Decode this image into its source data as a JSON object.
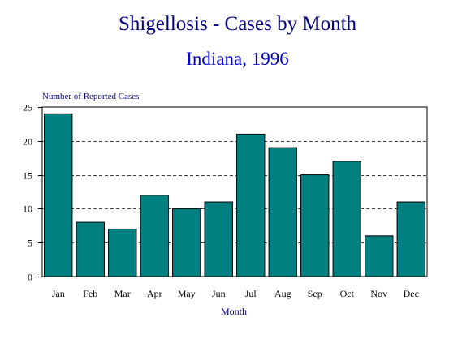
{
  "chart_data": {
    "type": "bar",
    "title": "Shigellosis - Cases by Month",
    "subtitle": "Indiana, 1996",
    "ylabel": "Number of Reported Cases",
    "xlabel": "Month",
    "categories": [
      "Jan",
      "Feb",
      "Mar",
      "Apr",
      "May",
      "Jun",
      "Jul",
      "Aug",
      "Sep",
      "Oct",
      "Nov",
      "Dec"
    ],
    "values": [
      24,
      8,
      7,
      12,
      10,
      11,
      21,
      19,
      15,
      17,
      6,
      11
    ],
    "ylim": [
      0,
      25
    ],
    "yticks": [
      "0",
      "5",
      "10",
      "15",
      "20",
      "25"
    ],
    "grid": "horizontal-dashed",
    "legend": "none",
    "colors": {
      "bar": "#008080",
      "title": "#000080",
      "subtitle": "#0000cc",
      "axis_label": "#000080"
    }
  }
}
